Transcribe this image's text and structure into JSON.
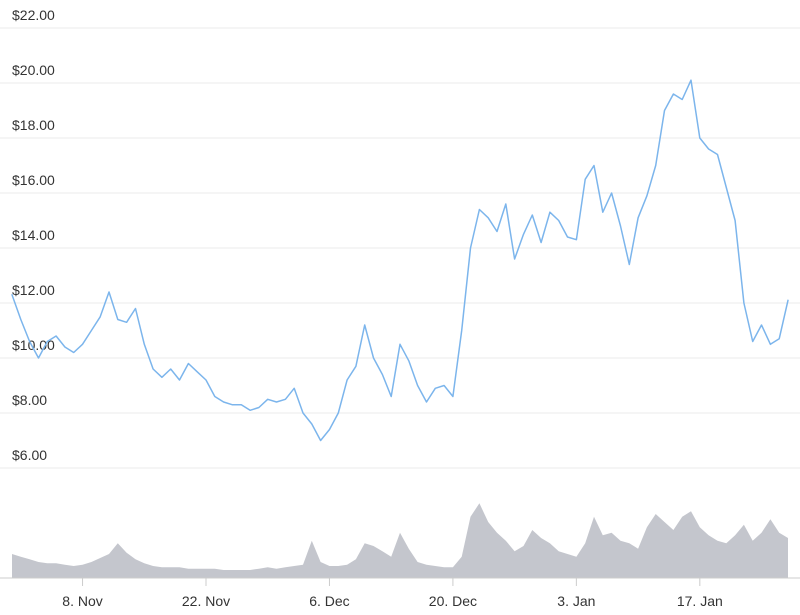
{
  "chart_data": {
    "type": "line",
    "x_tick_labels": [
      "8. Nov",
      "22. Nov",
      "6. Dec",
      "20. Dec",
      "3. Jan",
      "17. Jan"
    ],
    "x_tick_days": [
      8,
      22,
      36,
      50,
      64,
      78
    ],
    "y_tick_labels": [
      "$6.00",
      "$8.00",
      "$10.00",
      "$12.00",
      "$14.00",
      "$16.00",
      "$18.00",
      "$20.00",
      "$22.00"
    ],
    "y_tick_values": [
      6,
      8,
      10,
      12,
      14,
      16,
      18,
      20,
      22
    ],
    "ylim": [
      6,
      22
    ],
    "grid": true,
    "colors": {
      "line": "#7cb5ec",
      "volume": "#c4c6cd",
      "grid": "#ebebeb",
      "axis": "#cccccc",
      "text": "#333333"
    },
    "series": [
      {
        "values_x_days": [
          0,
          1,
          2,
          3,
          4,
          5,
          6,
          7,
          8,
          9,
          10,
          11,
          12,
          13,
          14,
          15,
          16,
          17,
          18,
          19,
          20,
          21,
          22,
          23,
          24,
          25,
          26,
          27,
          28,
          29,
          30,
          31,
          32,
          33,
          34,
          35,
          36,
          37,
          38,
          39,
          40,
          41,
          42,
          43,
          44,
          45,
          46,
          47,
          48,
          49,
          50,
          51,
          52,
          53,
          54,
          55,
          56,
          57,
          58,
          59,
          60,
          61,
          62,
          63,
          64,
          65,
          66,
          67,
          68,
          69,
          70,
          71,
          72,
          73,
          74,
          75,
          76,
          77,
          78,
          79,
          80,
          81,
          82,
          83,
          84,
          85,
          86,
          87,
          88
        ],
        "price": [
          12.3,
          11.4,
          10.6,
          10.0,
          10.6,
          10.8,
          10.4,
          10.2,
          10.5,
          11.0,
          11.5,
          12.4,
          11.4,
          11.3,
          11.8,
          10.5,
          9.6,
          9.3,
          9.6,
          9.2,
          9.8,
          9.5,
          9.2,
          8.6,
          8.4,
          8.3,
          8.3,
          8.1,
          8.2,
          8.5,
          8.4,
          8.5,
          8.9,
          8.0,
          7.6,
          7.0,
          7.4,
          8.0,
          9.2,
          9.7,
          11.2,
          10.0,
          9.4,
          8.6,
          10.5,
          9.9,
          9.0,
          8.4,
          8.9,
          9.0,
          8.6,
          11.0,
          14.0,
          15.4,
          15.1,
          14.6,
          15.6,
          13.6,
          14.5,
          15.2,
          14.2,
          15.3,
          15.0,
          14.4,
          14.3,
          16.5,
          17.0,
          15.3,
          16.0,
          14.8,
          13.4,
          15.1,
          15.9,
          17.0,
          19.0,
          19.6,
          19.4,
          20.1,
          18.0,
          17.6,
          17.4,
          16.2,
          15.0,
          12.0,
          10.6,
          11.2,
          10.5,
          10.7,
          12.1
        ],
        "volume": [
          1.8,
          1.6,
          1.4,
          1.2,
          1.1,
          1.1,
          1.0,
          0.9,
          1.0,
          1.2,
          1.5,
          1.8,
          2.6,
          1.9,
          1.4,
          1.1,
          0.9,
          0.8,
          0.8,
          0.8,
          0.7,
          0.7,
          0.7,
          0.7,
          0.6,
          0.6,
          0.6,
          0.6,
          0.7,
          0.8,
          0.7,
          0.8,
          0.9,
          1.0,
          2.8,
          1.2,
          0.9,
          0.9,
          1.0,
          1.4,
          2.6,
          2.4,
          2.0,
          1.6,
          3.4,
          2.2,
          1.2,
          1.0,
          0.9,
          0.8,
          0.8,
          1.6,
          4.6,
          5.6,
          4.2,
          3.4,
          2.8,
          2.0,
          2.4,
          3.6,
          3.0,
          2.6,
          2.0,
          1.8,
          1.6,
          2.6,
          4.6,
          3.2,
          3.4,
          2.8,
          2.6,
          2.2,
          3.8,
          4.8,
          4.2,
          3.6,
          4.6,
          5.0,
          3.8,
          3.2,
          2.8,
          2.6,
          3.2,
          4.0,
          2.8,
          3.4,
          4.4,
          3.4,
          3.0
        ]
      }
    ]
  }
}
